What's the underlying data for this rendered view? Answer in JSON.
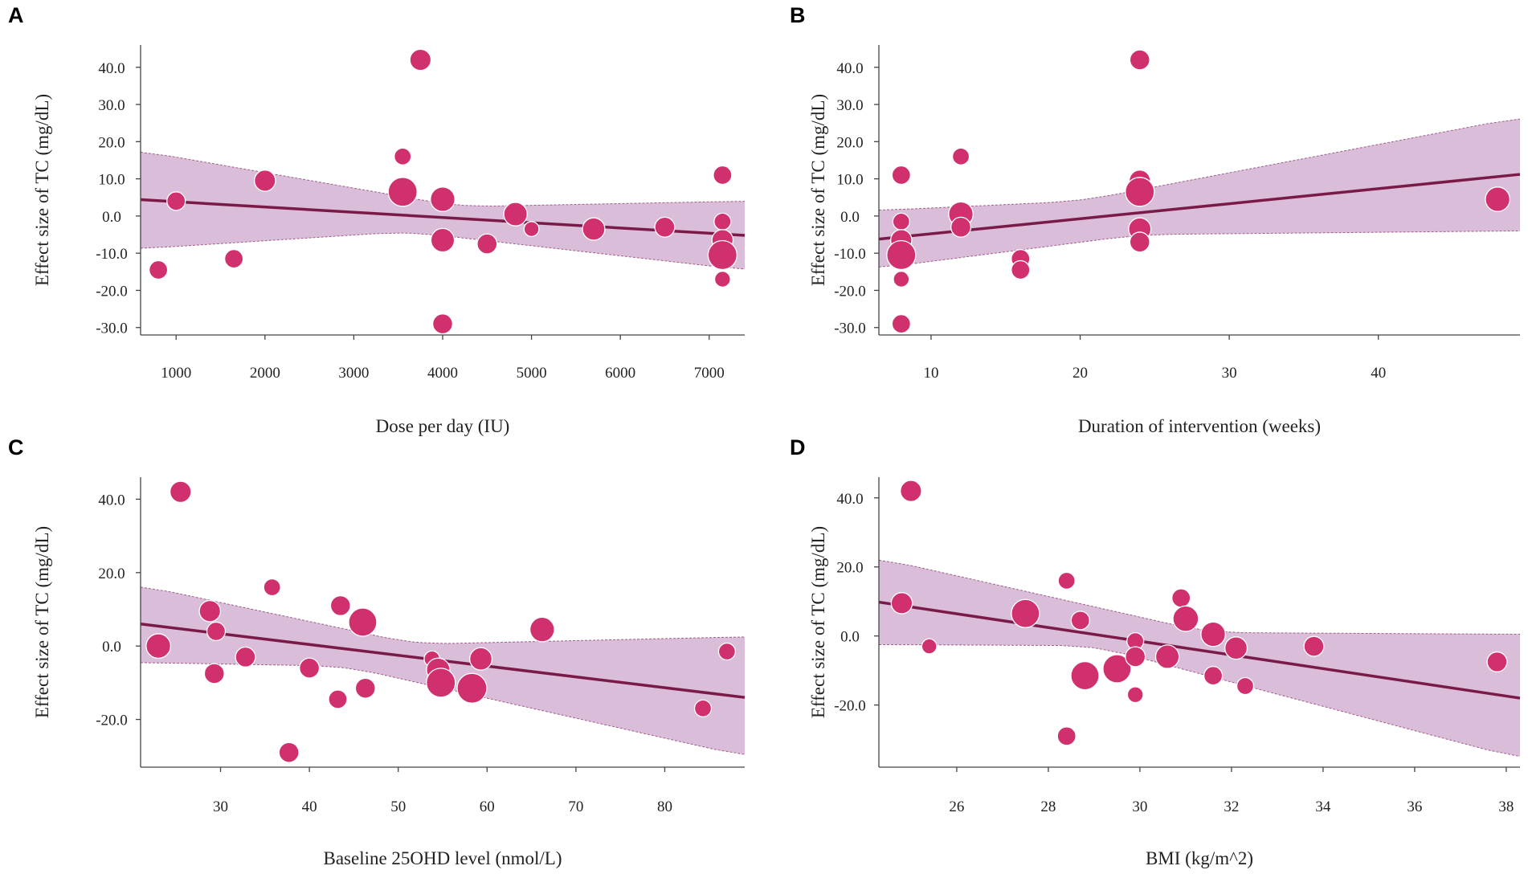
{
  "figure": {
    "colors": {
      "point": "#d0316e",
      "line": "#7a1a48",
      "band": "#d2b1d2",
      "band_edge": "#a0608a",
      "axis": "#444444"
    }
  },
  "chart_data": [
    {
      "panel": "A",
      "type": "scatter",
      "title": "",
      "xlabel": "Dose per day (IU)",
      "ylabel": "Effect size of TC (mg/dL)",
      "xlim": [
        600,
        7400
      ],
      "ylim": [
        -32,
        46
      ],
      "xticks": [
        1000,
        2000,
        3000,
        4000,
        5000,
        6000,
        7000
      ],
      "yticks": [
        -30,
        -20,
        -10,
        0,
        10,
        20,
        30,
        40
      ],
      "xtick_labels": [
        "1000",
        "2000",
        "3000",
        "4000",
        "5000",
        "6000",
        "7000"
      ],
      "ytick_labels": [
        "-30.0",
        "-20.0",
        "-10.0",
        "0.0",
        "10.0",
        "20.0",
        "30.0",
        "40.0"
      ],
      "regression": {
        "x": [
          600,
          7400
        ],
        "y": [
          4.4,
          -5.2
        ]
      },
      "ci_upper": {
        "x": [
          600,
          4200,
          7400
        ],
        "y": [
          17.5,
          2.5,
          4.0
        ]
      },
      "ci_lower": {
        "x": [
          600,
          3600,
          7400
        ],
        "y": [
          -8.8,
          -4.2,
          -14.5
        ]
      },
      "points": [
        {
          "x": 800,
          "y": -14.5,
          "w": 2
        },
        {
          "x": 1000,
          "y": 4,
          "w": 2
        },
        {
          "x": 1650,
          "y": -11.5,
          "w": 2
        },
        {
          "x": 2000,
          "y": 9.5,
          "w": 3
        },
        {
          "x": 3550,
          "y": 16,
          "w": 1.5
        },
        {
          "x": 3550,
          "y": 6.5,
          "w": 7
        },
        {
          "x": 3750,
          "y": 42,
          "w": 3
        },
        {
          "x": 4000,
          "y": 4.5,
          "w": 4.5
        },
        {
          "x": 4000,
          "y": -6.5,
          "w": 4
        },
        {
          "x": 4000,
          "y": -29,
          "w": 2.5
        },
        {
          "x": 4500,
          "y": -7.5,
          "w": 2.5
        },
        {
          "x": 4820,
          "y": 0.5,
          "w": 4
        },
        {
          "x": 5000,
          "y": -3.5,
          "w": 1
        },
        {
          "x": 5700,
          "y": -3.5,
          "w": 3.5
        },
        {
          "x": 6500,
          "y": -3,
          "w": 2.5
        },
        {
          "x": 7150,
          "y": 11,
          "w": 2
        },
        {
          "x": 7150,
          "y": -1.5,
          "w": 1.5
        },
        {
          "x": 7150,
          "y": -6.5,
          "w": 3
        },
        {
          "x": 7150,
          "y": -10.5,
          "w": 7
        },
        {
          "x": 7150,
          "y": -17,
          "w": 1.2
        }
      ]
    },
    {
      "panel": "B",
      "type": "scatter",
      "title": "",
      "xlabel": "Duration of intervention (weeks)",
      "ylabel": "Effect size of TC (mg/dL)",
      "xlim": [
        6.5,
        49.5
      ],
      "ylim": [
        -32,
        46
      ],
      "xticks": [
        10,
        20,
        30,
        40
      ],
      "yticks": [
        -30,
        -20,
        -10,
        0,
        10,
        20,
        30,
        40
      ],
      "xtick_labels": [
        "10",
        "20",
        "30",
        "40"
      ],
      "ytick_labels": [
        "-30.0",
        "-20.0",
        "-10.0",
        "0.0",
        "10.0",
        "20.0",
        "30.0",
        "40.0"
      ],
      "regression": {
        "x": [
          6.5,
          49.5
        ],
        "y": [
          -6.2,
          11.2
        ]
      },
      "ci_upper": {
        "x": [
          6.5,
          20,
          49.5
        ],
        "y": [
          1.5,
          4.0,
          26.5
        ]
      },
      "ci_lower": {
        "x": [
          6.5,
          24,
          49.5
        ],
        "y": [
          -14.0,
          -5.0,
          -4.0
        ]
      },
      "points": [
        {
          "x": 8,
          "y": 11,
          "w": 2
        },
        {
          "x": 8,
          "y": -1.5,
          "w": 1.5
        },
        {
          "x": 8,
          "y": -6.5,
          "w": 3
        },
        {
          "x": 8,
          "y": -10.5,
          "w": 7
        },
        {
          "x": 8,
          "y": -17,
          "w": 1.2
        },
        {
          "x": 8,
          "y": -29,
          "w": 2
        },
        {
          "x": 12,
          "y": 16,
          "w": 1.5
        },
        {
          "x": 12,
          "y": 0.5,
          "w": 4.5
        },
        {
          "x": 12,
          "y": -3,
          "w": 2.5
        },
        {
          "x": 16,
          "y": -11.5,
          "w": 2
        },
        {
          "x": 16,
          "y": -14.5,
          "w": 2
        },
        {
          "x": 24,
          "y": 42,
          "w": 2.5
        },
        {
          "x": 24,
          "y": 9.5,
          "w": 3
        },
        {
          "x": 24,
          "y": 6.5,
          "w": 7
        },
        {
          "x": 24,
          "y": -3.5,
          "w": 3.5
        },
        {
          "x": 24,
          "y": -7,
          "w": 2.5
        },
        {
          "x": 48,
          "y": 4.5,
          "w": 4.5
        }
      ]
    },
    {
      "panel": "C",
      "type": "scatter",
      "title": "",
      "xlabel": "Baseline 25OHD level (nmol/L)",
      "ylabel": "Effect size of TC (mg/dL)",
      "xlim": [
        21,
        89
      ],
      "ylim": [
        -33,
        46
      ],
      "xticks": [
        30,
        40,
        50,
        60,
        70,
        80
      ],
      "yticks": [
        -20,
        0,
        20,
        40
      ],
      "xtick_labels": [
        "30",
        "40",
        "50",
        "60",
        "70",
        "80"
      ],
      "ytick_labels": [
        "-20.0",
        "0.0",
        "20.0",
        "40.0"
      ],
      "regression": {
        "x": [
          21,
          89
        ],
        "y": [
          6.0,
          -14.0
        ]
      },
      "ci_upper": {
        "x": [
          21,
          52,
          89
        ],
        "y": [
          16.5,
          0.5,
          2.5
        ]
      },
      "ci_lower": {
        "x": [
          21,
          44,
          89
        ],
        "y": [
          -4.5,
          -5.5,
          -30.0
        ]
      },
      "points": [
        {
          "x": 23,
          "y": 0,
          "w": 4.5
        },
        {
          "x": 25.5,
          "y": 42,
          "w": 3
        },
        {
          "x": 28.8,
          "y": 9.5,
          "w": 3
        },
        {
          "x": 29.5,
          "y": 4,
          "w": 2
        },
        {
          "x": 29.3,
          "y": -7.5,
          "w": 2.5
        },
        {
          "x": 32.8,
          "y": -3,
          "w": 2.5
        },
        {
          "x": 35.8,
          "y": 16,
          "w": 1.5
        },
        {
          "x": 37.7,
          "y": -29,
          "w": 2.5
        },
        {
          "x": 40,
          "y": -6,
          "w": 2.5
        },
        {
          "x": 43.2,
          "y": -14.5,
          "w": 2
        },
        {
          "x": 43.5,
          "y": 11,
          "w": 2.5
        },
        {
          "x": 46,
          "y": 6.5,
          "w": 6.5
        },
        {
          "x": 46.3,
          "y": -11.5,
          "w": 2.5
        },
        {
          "x": 53.8,
          "y": -3.5,
          "w": 1.2
        },
        {
          "x": 54.5,
          "y": -6.5,
          "w": 4
        },
        {
          "x": 54.8,
          "y": -10,
          "w": 7
        },
        {
          "x": 58.3,
          "y": -11.5,
          "w": 7.5
        },
        {
          "x": 59.3,
          "y": -3.5,
          "w": 3.5
        },
        {
          "x": 66.2,
          "y": 4.5,
          "w": 4.5
        },
        {
          "x": 84.3,
          "y": -17,
          "w": 1.5
        },
        {
          "x": 87,
          "y": -1.5,
          "w": 1.5
        }
      ]
    },
    {
      "panel": "D",
      "type": "scatter",
      "title": "",
      "xlabel": "BMI (kg/m^2)",
      "ylabel": "Effect size of TC (mg/dL)",
      "xlim": [
        24.3,
        38.3
      ],
      "ylim": [
        -38,
        46
      ],
      "xticks": [
        26,
        28,
        30,
        32,
        34,
        36,
        38
      ],
      "yticks": [
        -20,
        0,
        20,
        40
      ],
      "xtick_labels": [
        "26",
        "28",
        "30",
        "32",
        "34",
        "36",
        "38"
      ],
      "ytick_labels": [
        "-20.0",
        "0.0",
        "20.0",
        "40.0"
      ],
      "regression": {
        "x": [
          24.3,
          38.3
        ],
        "y": [
          9.8,
          -18.0
        ]
      },
      "ci_upper": {
        "x": [
          24.3,
          31.5,
          38.3
        ],
        "y": [
          22.5,
          1.0,
          0.5
        ]
      },
      "ci_lower": {
        "x": [
          24.3,
          29.0,
          38.3
        ],
        "y": [
          -2.5,
          -2.8,
          -35.5
        ]
      },
      "points": [
        {
          "x": 24.8,
          "y": 9.5,
          "w": 3
        },
        {
          "x": 25,
          "y": 42,
          "w": 3
        },
        {
          "x": 25.4,
          "y": -3,
          "w": 1
        },
        {
          "x": 27.5,
          "y": 6.5,
          "w": 6.5
        },
        {
          "x": 28.4,
          "y": 16,
          "w": 1.5
        },
        {
          "x": 28.7,
          "y": 4.5,
          "w": 2
        },
        {
          "x": 28.4,
          "y": -29,
          "w": 2
        },
        {
          "x": 28.8,
          "y": -11.5,
          "w": 6.5
        },
        {
          "x": 29.5,
          "y": -9.5,
          "w": 6.5
        },
        {
          "x": 29.9,
          "y": -1.5,
          "w": 1.5
        },
        {
          "x": 29.9,
          "y": -6,
          "w": 2.5
        },
        {
          "x": 29.9,
          "y": -17,
          "w": 1.2
        },
        {
          "x": 30.6,
          "y": -6,
          "w": 4
        },
        {
          "x": 30.9,
          "y": 11,
          "w": 2
        },
        {
          "x": 31,
          "y": 5,
          "w": 5
        },
        {
          "x": 31.6,
          "y": 0.5,
          "w": 4.5
        },
        {
          "x": 31.6,
          "y": -11.5,
          "w": 2
        },
        {
          "x": 32.1,
          "y": -3.5,
          "w": 3.5
        },
        {
          "x": 32.3,
          "y": -14.5,
          "w": 1.5
        },
        {
          "x": 33.8,
          "y": -3,
          "w": 2.5
        },
        {
          "x": 37.8,
          "y": -7.5,
          "w": 2.5
        }
      ]
    }
  ]
}
